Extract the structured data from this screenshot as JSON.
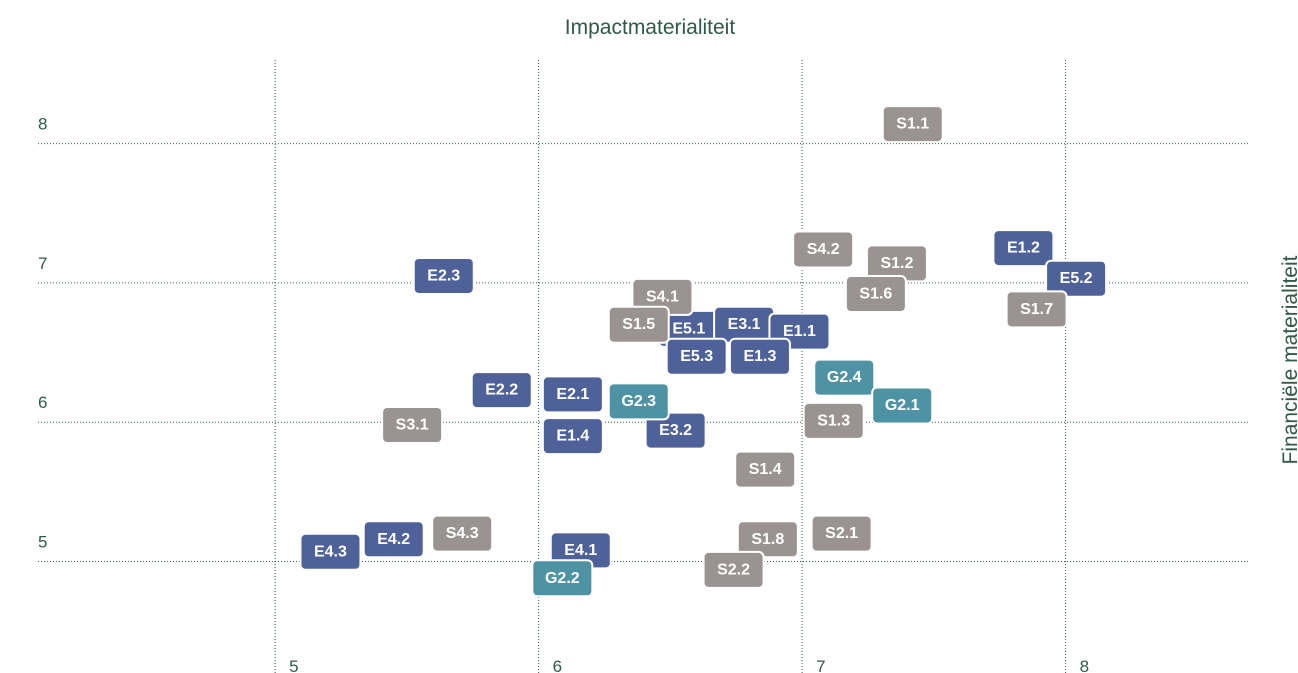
{
  "chart_data": {
    "type": "scatter",
    "xlabel": "Impactmaterialiteit",
    "ylabel": "Financiële materialiteit",
    "xlim": [
      4.1,
      8.7
    ],
    "ylim": [
      4.2,
      8.6
    ],
    "xticks": [
      5,
      6,
      7,
      8
    ],
    "yticks": [
      5,
      6,
      7,
      8
    ],
    "grid": true,
    "series": [
      {
        "color": "#4f6199",
        "labels": [
          "E2.3",
          "E1.2",
          "E5.2",
          "E5.1",
          "E3.1",
          "E1.1",
          "E5.3",
          "E1.3",
          "E2.2",
          "E2.1",
          "E1.4",
          "E3.2",
          "E4.2",
          "E4.3",
          "E4.1"
        ],
        "x": [
          5.64,
          7.84,
          8.04,
          6.57,
          6.78,
          6.99,
          6.6,
          6.84,
          5.86,
          6.13,
          6.13,
          6.52,
          5.45,
          5.21,
          6.16
        ],
        "y": [
          7.05,
          7.25,
          7.03,
          6.67,
          6.7,
          6.65,
          6.47,
          6.47,
          6.23,
          6.2,
          5.9,
          5.94,
          5.16,
          5.07,
          5.08
        ]
      },
      {
        "color": "#9a9392",
        "labels": [
          "S1.1",
          "S4.2",
          "S1.2",
          "S1.6",
          "S1.7",
          "S4.1",
          "S1.5",
          "S3.1",
          "S1.3",
          "S1.4",
          "S2.1",
          "S4.3",
          "S1.8",
          "S2.2"
        ],
        "x": [
          7.42,
          7.08,
          7.36,
          7.28,
          7.89,
          6.47,
          6.38,
          5.52,
          7.12,
          6.86,
          7.15,
          5.71,
          6.87,
          6.74
        ],
        "y": [
          8.14,
          7.24,
          7.14,
          6.92,
          6.81,
          6.9,
          6.7,
          5.98,
          6.01,
          5.66,
          5.2,
          5.2,
          5.16,
          4.94
        ]
      },
      {
        "color": "#4e93a3",
        "labels": [
          "G2.4",
          "G2.3",
          "G2.1",
          "G2.2"
        ],
        "x": [
          7.16,
          6.38,
          7.38,
          6.09
        ],
        "y": [
          6.32,
          6.15,
          6.12,
          4.88
        ]
      }
    ]
  }
}
